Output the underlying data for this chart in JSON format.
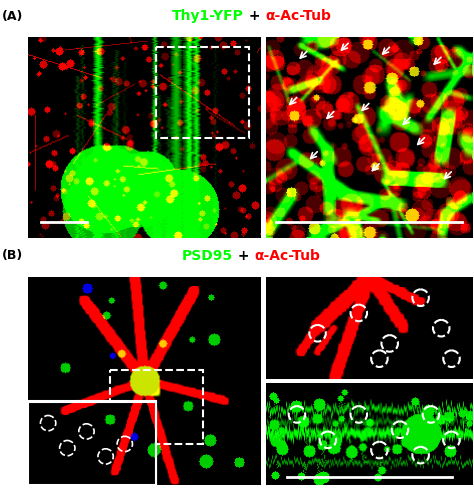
{
  "fig_width": 4.74,
  "fig_height": 4.9,
  "bg_color": "#ffffff",
  "panel_A_label": "(A)",
  "panel_B_label": "(B)",
  "title_A_parts": [
    {
      "text": "Thy1-YFP",
      "color": "#00ff00"
    },
    {
      "text": " + ",
      "color": "#000000"
    },
    {
      "text": "α-Ac-Tub",
      "color": "#ff0000"
    }
  ],
  "title_B_parts": [
    {
      "text": "PSD95",
      "color": "#00ff00"
    },
    {
      "text": " + ",
      "color": "#000000"
    },
    {
      "text": "α-Ac-Tub",
      "color": "#ff0000"
    }
  ],
  "panel_label_color": "#000000",
  "panel_label_fontsize": 9,
  "title_fontsize": 10,
  "image_bg": "#000000",
  "scale_bar_color": "#ffffff"
}
